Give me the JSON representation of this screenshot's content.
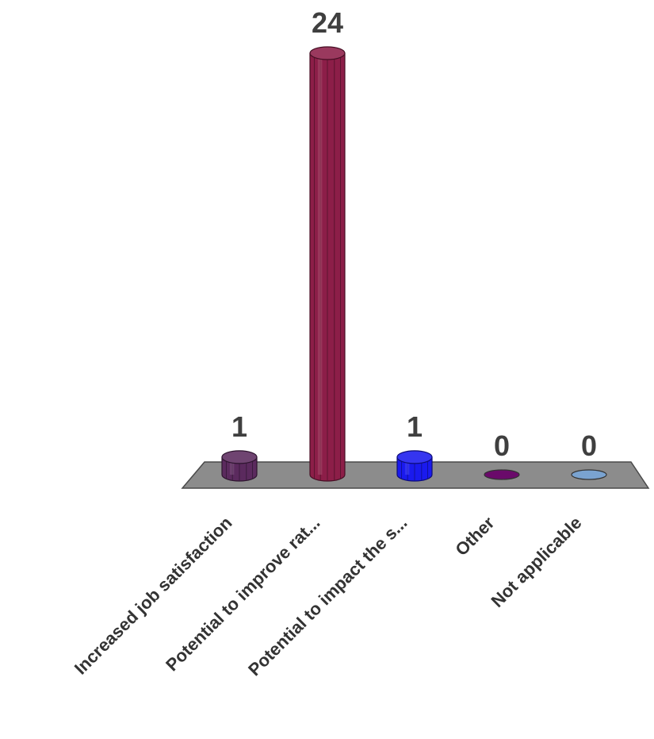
{
  "chart_data": {
    "type": "bar",
    "style": "3d-cylinder",
    "categories": [
      "Increased job satisfaction",
      "Potential to improve rat...",
      "Potential to impact the s...",
      "Other",
      "Not applicable"
    ],
    "values": [
      1,
      24,
      1,
      0,
      0
    ],
    "data_labels": [
      "1",
      "24",
      "1",
      "0",
      "0"
    ],
    "colors": [
      "#5b2a5e",
      "#8c1e48",
      "#1a1aee",
      "#6a0a6a",
      "#7aa3d0"
    ],
    "floor_color": "#8c8c8c",
    "ylim": [
      0,
      24
    ],
    "grid": false,
    "legend": "none",
    "title": "",
    "xlabel": "",
    "ylabel": ""
  }
}
